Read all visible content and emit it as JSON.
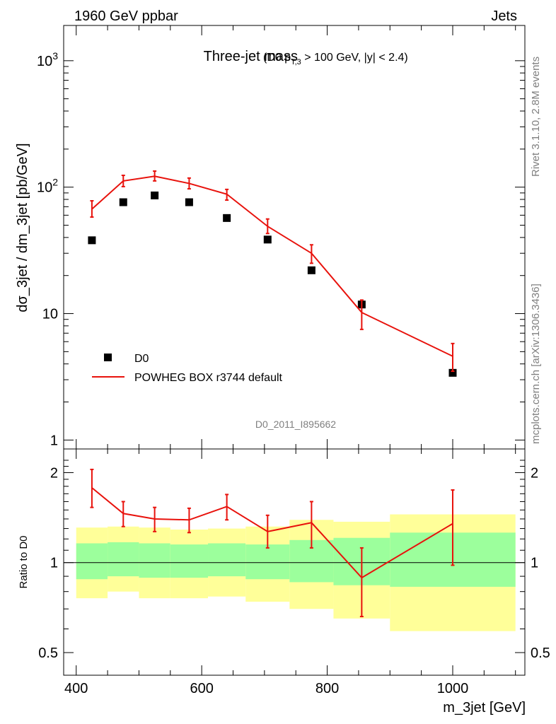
{
  "header": {
    "left": "1960 GeV ppbar",
    "right": "Jets"
  },
  "side_labels": {
    "rivet": "Rivet 3.1.10,  2.8M events",
    "mcplots": "mcplots.cern.ch [arXiv:1306.3436]"
  },
  "watermark": "D0_2011_I895662",
  "colors": {
    "mc": "#e8120c",
    "band_inner": "#9cff9c",
    "band_outer": "#ffff99",
    "data": "#000000"
  },
  "chart_data": [
    {
      "type": "scatter",
      "panel": "main",
      "title": "Three-jet mass",
      "subtitle_parts": [
        "(D0 p",
        "T,3",
        " > 100 GeV, |y| < 2.4)"
      ],
      "xlabel": "m_3jet [GeV]",
      "ylabel": "dσ_3jet / dm_3jet [pb/GeV]",
      "xlim": [
        380,
        1115
      ],
      "ylim": [
        0.85,
        1900
      ],
      "yscale": "log",
      "yticks": [
        {
          "value": 1,
          "label": "1"
        },
        {
          "value": 10,
          "label": "10"
        },
        {
          "value": 100,
          "label": "10",
          "exp": "2"
        },
        {
          "value": 1000,
          "label": "10",
          "exp": "3"
        }
      ],
      "legend_placement": "lower-left",
      "legend": [
        "D0",
        "POWHEG BOX r3744 default"
      ],
      "series": [
        {
          "name": "D0",
          "x": [
            425,
            475,
            525,
            580,
            640,
            705,
            775,
            855,
            1000
          ],
          "y": [
            38,
            76,
            86,
            76,
            57,
            38.5,
            22,
            11.8,
            3.4
          ]
        },
        {
          "name": "POWHEG BOX r3744 default",
          "x": [
            425,
            475,
            525,
            580,
            640,
            705,
            775,
            855,
            1000
          ],
          "y": [
            67,
            112,
            122,
            107,
            88,
            49,
            30,
            10.2,
            4.6
          ],
          "yerr_low": [
            58,
            101,
            112,
            97,
            79,
            43,
            25,
            7.5,
            3.5
          ],
          "yerr_high": [
            78,
            124,
            134,
            118,
            96,
            56,
            35,
            12.8,
            5.8
          ]
        }
      ]
    },
    {
      "type": "line",
      "panel": "ratio",
      "xlabel": "m_3jet [GeV]",
      "ylabel": "Ratio to D0",
      "xlim": [
        380,
        1115
      ],
      "ylim": [
        0.42,
        2.4
      ],
      "yscale": "log",
      "yticks": [
        {
          "value": 0.5,
          "label": "0.5"
        },
        {
          "value": 1,
          "label": "1"
        },
        {
          "value": 2,
          "label": "2"
        }
      ],
      "xticks": [
        400,
        600,
        800,
        1000
      ],
      "reference_line": 1,
      "bands": [
        {
          "xmin": 400,
          "xmax": 450,
          "inner": [
            0.88,
            1.16
          ],
          "outer": [
            0.76,
            1.31
          ]
        },
        {
          "xmin": 450,
          "xmax": 500,
          "inner": [
            0.9,
            1.17
          ],
          "outer": [
            0.8,
            1.32
          ]
        },
        {
          "xmin": 500,
          "xmax": 550,
          "inner": [
            0.89,
            1.16
          ],
          "outer": [
            0.76,
            1.31
          ]
        },
        {
          "xmin": 550,
          "xmax": 610,
          "inner": [
            0.89,
            1.15
          ],
          "outer": [
            0.76,
            1.29
          ]
        },
        {
          "xmin": 610,
          "xmax": 670,
          "inner": [
            0.9,
            1.16
          ],
          "outer": [
            0.77,
            1.3
          ]
        },
        {
          "xmin": 670,
          "xmax": 740,
          "inner": [
            0.88,
            1.15
          ],
          "outer": [
            0.74,
            1.32
          ]
        },
        {
          "xmin": 740,
          "xmax": 810,
          "inner": [
            0.86,
            1.19
          ],
          "outer": [
            0.7,
            1.39
          ]
        },
        {
          "xmin": 810,
          "xmax": 900,
          "inner": [
            0.84,
            1.21
          ],
          "outer": [
            0.65,
            1.37
          ]
        },
        {
          "xmin": 900,
          "xmax": 1100,
          "inner": [
            0.83,
            1.26
          ],
          "outer": [
            0.59,
            1.45
          ]
        }
      ],
      "series": [
        {
          "name": "POWHEG BOX r3744 default",
          "x": [
            425,
            475,
            525,
            580,
            640,
            705,
            775,
            855,
            1000
          ],
          "y": [
            1.78,
            1.46,
            1.4,
            1.39,
            1.54,
            1.27,
            1.36,
            0.89,
            1.35
          ],
          "yerr_low": [
            1.53,
            1.32,
            1.27,
            1.26,
            1.39,
            1.12,
            1.12,
            0.66,
            0.98
          ],
          "yerr_high": [
            2.05,
            1.6,
            1.53,
            1.52,
            1.69,
            1.44,
            1.6,
            1.12,
            1.75
          ]
        }
      ]
    }
  ]
}
